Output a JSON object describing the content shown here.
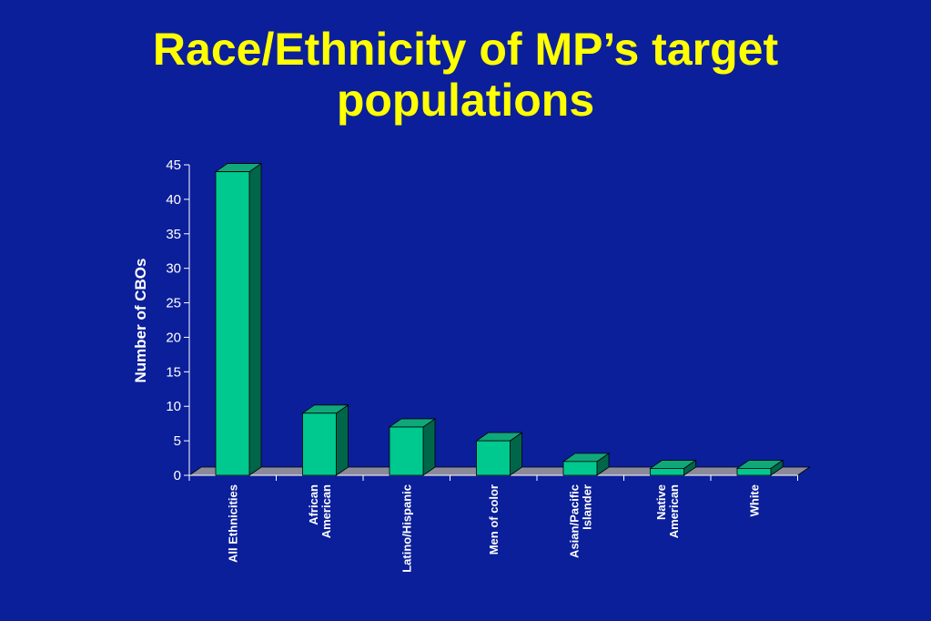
{
  "slide": {
    "title_line1": "Race/Ethnicity of MP’s target",
    "title_line2": "populations"
  },
  "colors": {
    "background": "#0b1f9a",
    "title": "#ffff00",
    "bar_front": "#00c98f",
    "bar_top": "#10a87a",
    "bar_side": "#00664a",
    "floor": "#8a8a9a",
    "axis": "#ffffff"
  },
  "chart_data": {
    "type": "bar",
    "title": "",
    "ylabel": "Number of CBOs",
    "xlabel": "",
    "ylim": [
      0,
      45
    ],
    "yticks": [
      0,
      5,
      10,
      15,
      20,
      25,
      30,
      35,
      40,
      45
    ],
    "grid": false,
    "categories": [
      [
        "All Ethnicities"
      ],
      [
        "African",
        "American"
      ],
      [
        "Latino/Hispanic"
      ],
      [
        "Men of color"
      ],
      [
        "Asian/Pacific",
        "Islander"
      ],
      [
        "Native",
        "American"
      ],
      [
        "White"
      ]
    ],
    "values": [
      44,
      9,
      7,
      5,
      2,
      1,
      1
    ]
  }
}
